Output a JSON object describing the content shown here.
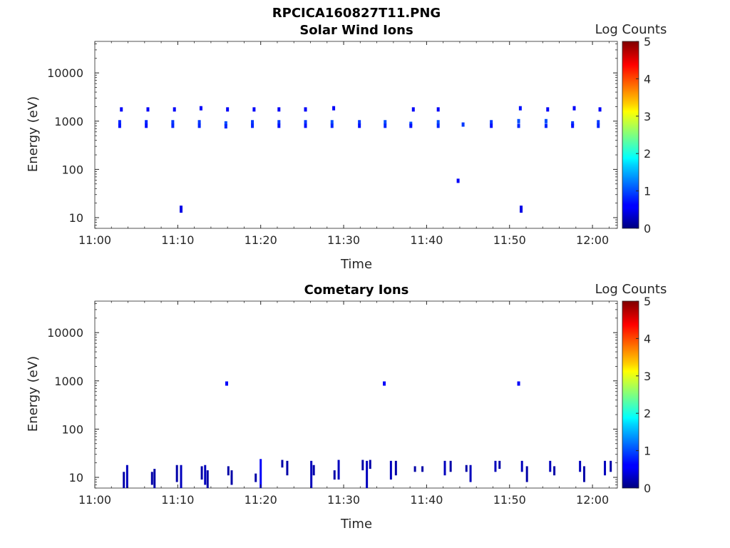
{
  "figure": {
    "title": "RPCICA160827T11.PNG"
  },
  "chart_data": [
    {
      "type": "heatmap",
      "title": "Solar Wind Ions",
      "xlabel": "Time",
      "ylabel": "Energy (eV)",
      "x_ticks": [
        "11:00",
        "11:10",
        "11:20",
        "11:30",
        "11:40",
        "11:50",
        "12:00"
      ],
      "x_range_minutes": [
        0,
        63
      ],
      "y_scale": "log",
      "y_ticks": [
        "10",
        "100",
        "1000",
        "10000"
      ],
      "y_range": [
        6,
        45000
      ],
      "colorbar": {
        "label": "Log Counts",
        "ticks": [
          "0",
          "1",
          "2",
          "3",
          "4",
          "5"
        ],
        "range": [
          0,
          5
        ],
        "colormap": "jet"
      },
      "grid": false,
      "points": [
        {
          "t": 3.2,
          "e": 1750,
          "v": 0.6
        },
        {
          "t": 3.0,
          "e": 950,
          "v": 0.8
        },
        {
          "t": 3.0,
          "e": 800,
          "v": 0.7
        },
        {
          "t": 6.4,
          "e": 1750,
          "v": 0.6
        },
        {
          "t": 6.2,
          "e": 950,
          "v": 0.8
        },
        {
          "t": 6.2,
          "e": 800,
          "v": 0.7
        },
        {
          "t": 9.6,
          "e": 1750,
          "v": 0.6
        },
        {
          "t": 9.4,
          "e": 950,
          "v": 0.9
        },
        {
          "t": 9.4,
          "e": 800,
          "v": 0.8
        },
        {
          "t": 12.8,
          "e": 1850,
          "v": 0.6
        },
        {
          "t": 12.6,
          "e": 950,
          "v": 0.9
        },
        {
          "t": 12.6,
          "e": 800,
          "v": 0.8
        },
        {
          "t": 16.0,
          "e": 1750,
          "v": 0.6
        },
        {
          "t": 15.8,
          "e": 900,
          "v": 1.0
        },
        {
          "t": 15.8,
          "e": 780,
          "v": 0.8
        },
        {
          "t": 19.2,
          "e": 1750,
          "v": 0.6
        },
        {
          "t": 19.0,
          "e": 950,
          "v": 0.9
        },
        {
          "t": 19.0,
          "e": 800,
          "v": 0.8
        },
        {
          "t": 22.2,
          "e": 1750,
          "v": 0.6
        },
        {
          "t": 22.2,
          "e": 950,
          "v": 0.9
        },
        {
          "t": 22.2,
          "e": 800,
          "v": 0.7
        },
        {
          "t": 25.4,
          "e": 1750,
          "v": 0.6
        },
        {
          "t": 25.4,
          "e": 950,
          "v": 0.9
        },
        {
          "t": 25.4,
          "e": 800,
          "v": 0.7
        },
        {
          "t": 28.8,
          "e": 1850,
          "v": 0.6
        },
        {
          "t": 28.6,
          "e": 950,
          "v": 1.0
        },
        {
          "t": 28.6,
          "e": 800,
          "v": 0.8
        },
        {
          "t": 31.9,
          "e": 950,
          "v": 0.9
        },
        {
          "t": 31.9,
          "e": 800,
          "v": 0.7
        },
        {
          "t": 35.0,
          "e": 950,
          "v": 1.0
        },
        {
          "t": 35.0,
          "e": 800,
          "v": 0.8
        },
        {
          "t": 38.4,
          "e": 1750,
          "v": 0.6
        },
        {
          "t": 38.1,
          "e": 880,
          "v": 1.0
        },
        {
          "t": 38.1,
          "e": 800,
          "v": 0.7
        },
        {
          "t": 41.4,
          "e": 1750,
          "v": 0.6
        },
        {
          "t": 41.4,
          "e": 950,
          "v": 1.0
        },
        {
          "t": 41.4,
          "e": 800,
          "v": 0.8
        },
        {
          "t": 44.4,
          "e": 850,
          "v": 0.9
        },
        {
          "t": 47.8,
          "e": 950,
          "v": 0.9
        },
        {
          "t": 47.8,
          "e": 800,
          "v": 0.7
        },
        {
          "t": 51.3,
          "e": 1850,
          "v": 0.7
        },
        {
          "t": 51.1,
          "e": 1000,
          "v": 1.0
        },
        {
          "t": 51.1,
          "e": 800,
          "v": 0.8
        },
        {
          "t": 54.6,
          "e": 1750,
          "v": 0.6
        },
        {
          "t": 54.4,
          "e": 1000,
          "v": 1.0
        },
        {
          "t": 54.4,
          "e": 800,
          "v": 0.8
        },
        {
          "t": 57.8,
          "e": 1850,
          "v": 0.6
        },
        {
          "t": 57.6,
          "e": 900,
          "v": 0.9
        },
        {
          "t": 57.6,
          "e": 800,
          "v": 0.7
        },
        {
          "t": 60.9,
          "e": 1750,
          "v": 0.6
        },
        {
          "t": 60.7,
          "e": 950,
          "v": 0.9
        },
        {
          "t": 60.7,
          "e": 800,
          "v": 0.8
        },
        {
          "t": 43.8,
          "e": 58,
          "v": 0.6
        },
        {
          "t": 10.4,
          "e": 16,
          "v": 0.5
        },
        {
          "t": 10.4,
          "e": 14,
          "v": 0.5
        },
        {
          "t": 51.4,
          "e": 16,
          "v": 0.5
        },
        {
          "t": 51.4,
          "e": 14,
          "v": 0.5
        }
      ]
    },
    {
      "type": "heatmap",
      "title": "Cometary Ions",
      "xlabel": "Time",
      "ylabel": "Energy (eV)",
      "x_ticks": [
        "11:00",
        "11:10",
        "11:20",
        "11:30",
        "11:40",
        "11:50",
        "12:00"
      ],
      "x_range_minutes": [
        0,
        63
      ],
      "y_scale": "log",
      "y_ticks": [
        "10",
        "100",
        "1000",
        "10000"
      ],
      "y_range": [
        6,
        45000
      ],
      "colorbar": {
        "label": "Log Counts",
        "ticks": [
          "0",
          "1",
          "2",
          "3",
          "4",
          "5"
        ],
        "range": [
          0,
          5
        ],
        "colormap": "jet"
      },
      "grid": false,
      "points": [
        {
          "t": 15.9,
          "e": 880,
          "v": 0.6
        },
        {
          "t": 34.9,
          "e": 880,
          "v": 0.6
        },
        {
          "t": 51.1,
          "e": 880,
          "v": 0.6
        }
      ],
      "columns": [
        {
          "t": 3.5,
          "e0": 6,
          "e1": 13,
          "v": 0.2
        },
        {
          "t": 3.9,
          "e0": 6,
          "e1": 18,
          "v": 0.3
        },
        {
          "t": 6.9,
          "e0": 7,
          "e1": 13,
          "v": 0.2
        },
        {
          "t": 7.2,
          "e0": 6,
          "e1": 15,
          "v": 0.2
        },
        {
          "t": 9.9,
          "e0": 8,
          "e1": 18,
          "v": 0.2
        },
        {
          "t": 10.4,
          "e0": 6,
          "e1": 18,
          "v": 0.3
        },
        {
          "t": 12.9,
          "e0": 9,
          "e1": 17,
          "v": 0.2
        },
        {
          "t": 13.3,
          "e0": 7,
          "e1": 18,
          "v": 0.3
        },
        {
          "t": 13.6,
          "e0": 6,
          "e1": 14,
          "v": 0.2
        },
        {
          "t": 16.1,
          "e0": 11,
          "e1": 17,
          "v": 0.2
        },
        {
          "t": 16.5,
          "e0": 7,
          "e1": 14,
          "v": 0.2
        },
        {
          "t": 19.4,
          "e0": 8,
          "e1": 12,
          "v": 0.2
        },
        {
          "t": 20.0,
          "e0": 6,
          "e1": 24,
          "v": 0.6
        },
        {
          "t": 22.6,
          "e0": 16,
          "e1": 23,
          "v": 0.2
        },
        {
          "t": 23.2,
          "e0": 11,
          "e1": 22,
          "v": 0.2
        },
        {
          "t": 26.1,
          "e0": 6,
          "e1": 22,
          "v": 0.3
        },
        {
          "t": 26.4,
          "e0": 11,
          "e1": 18,
          "v": 0.2
        },
        {
          "t": 29.4,
          "e0": 9,
          "e1": 23,
          "v": 0.3
        },
        {
          "t": 28.9,
          "e0": 9,
          "e1": 14,
          "v": 0.2
        },
        {
          "t": 32.3,
          "e0": 14,
          "e1": 23,
          "v": 0.2
        },
        {
          "t": 32.8,
          "e0": 6,
          "e1": 22,
          "v": 0.3
        },
        {
          "t": 33.2,
          "e0": 15,
          "e1": 23,
          "v": 0.2
        },
        {
          "t": 35.7,
          "e0": 9,
          "e1": 22,
          "v": 0.3
        },
        {
          "t": 36.3,
          "e0": 11,
          "e1": 22,
          "v": 0.2
        },
        {
          "t": 38.6,
          "e0": 13,
          "e1": 17,
          "v": 0.2
        },
        {
          "t": 39.5,
          "e0": 13,
          "e1": 17,
          "v": 0.2
        },
        {
          "t": 42.2,
          "e0": 11,
          "e1": 22,
          "v": 0.3
        },
        {
          "t": 42.9,
          "e0": 13,
          "e1": 22,
          "v": 0.2
        },
        {
          "t": 45.3,
          "e0": 8,
          "e1": 18,
          "v": 0.3
        },
        {
          "t": 44.8,
          "e0": 13,
          "e1": 18,
          "v": 0.2
        },
        {
          "t": 48.3,
          "e0": 13,
          "e1": 22,
          "v": 0.3
        },
        {
          "t": 48.8,
          "e0": 15,
          "e1": 22,
          "v": 0.2
        },
        {
          "t": 51.5,
          "e0": 13,
          "e1": 22,
          "v": 0.3
        },
        {
          "t": 52.1,
          "e0": 8,
          "e1": 17,
          "v": 0.2
        },
        {
          "t": 54.9,
          "e0": 13,
          "e1": 22,
          "v": 0.3
        },
        {
          "t": 55.4,
          "e0": 11,
          "e1": 17,
          "v": 0.2
        },
        {
          "t": 58.5,
          "e0": 13,
          "e1": 22,
          "v": 0.3
        },
        {
          "t": 59.0,
          "e0": 8,
          "e1": 17,
          "v": 0.2
        },
        {
          "t": 61.5,
          "e0": 11,
          "e1": 22,
          "v": 0.3
        },
        {
          "t": 62.2,
          "e0": 13,
          "e1": 22,
          "v": 0.2
        }
      ]
    }
  ]
}
